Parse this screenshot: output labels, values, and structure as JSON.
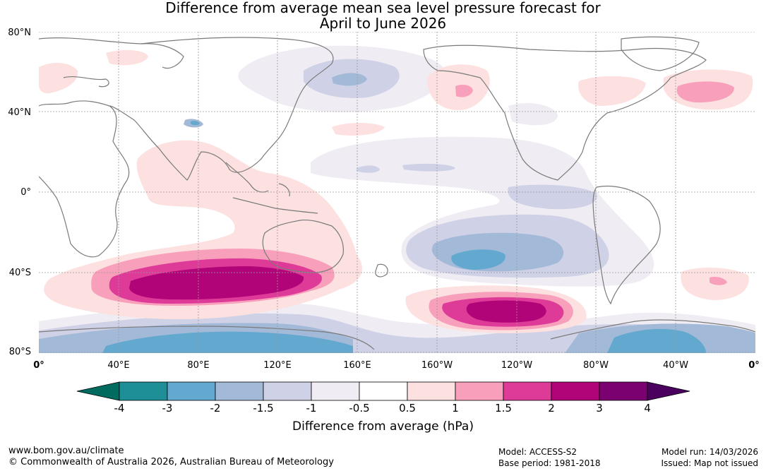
{
  "title": {
    "line1": "Difference from average mean sea level pressure forecast for",
    "line2": "April to June 2026"
  },
  "map": {
    "lat_ticks": [
      "80°N",
      "40°N",
      "0°",
      "40°S",
      "80°S"
    ],
    "lon_ticks": [
      "0°",
      "40°E",
      "80°E",
      "120°E",
      "160°E",
      "160°W",
      "120°W",
      "80°W",
      "40°W",
      "0°"
    ]
  },
  "colorbar": {
    "title": "Difference from average (hPa)",
    "labels": [
      "-4",
      "-3",
      "-2",
      "-1.5",
      "-1",
      "-0.5",
      "0.5",
      "1",
      "1.5",
      "2",
      "3",
      "4"
    ],
    "colors": [
      "#006b5e",
      "#1e8f96",
      "#62a8cf",
      "#a3b9d8",
      "#cfd1e6",
      "#f0ecf3",
      "#ffffff",
      "#fde0e0",
      "#f8a0bb",
      "#de3b99",
      "#b10478",
      "#7b0070",
      "#4b0060"
    ]
  },
  "footer": {
    "website": "www.bom.gov.au/climate",
    "copyright": "© Commonwealth of Australia 2026, Australian Bureau of Meteorology",
    "model": "Model: ACCESS-S2",
    "base_period": "Base period: 1981-2018",
    "model_run": "Model run: 14/03/2026",
    "issued": "Issued: Map not issued"
  }
}
